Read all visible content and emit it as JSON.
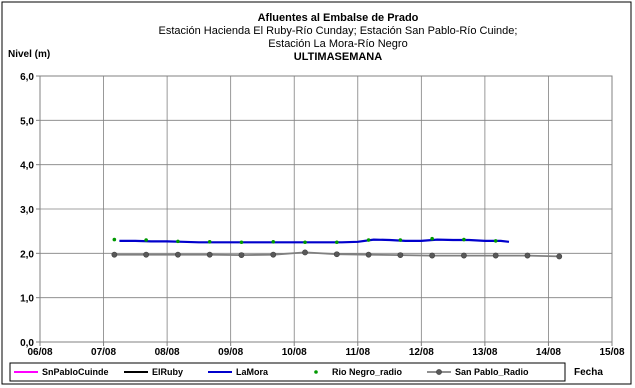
{
  "chart_data": {
    "type": "line",
    "title_lines": [
      "Afluentes al Embalse de Prado",
      "Estación Hacienda El Ruby-Río Cunday; Estación San Pablo-Río Cuinde;",
      "Estación La Mora-Río Negro",
      "ULTIMASEMANA"
    ],
    "ylabel": "Nivel (m)",
    "xlabel": "Fecha",
    "ylim": [
      0,
      6
    ],
    "y_ticks": [
      "0,0",
      "1,0",
      "2,0",
      "3,0",
      "4,0",
      "5,0",
      "6,0"
    ],
    "x_ticks": [
      "06/08",
      "07/08",
      "08/08",
      "09/08",
      "10/08",
      "11/08",
      "12/08",
      "13/08",
      "14/08",
      "15/08"
    ],
    "xlim": [
      0,
      9
    ],
    "grid": true,
    "legend_position": "bottom",
    "series": [
      {
        "name": "SnPabloCuinde",
        "color": "#ff00ff",
        "style": "line",
        "x": [],
        "y": []
      },
      {
        "name": "ElRuby",
        "color": "#000000",
        "style": "line",
        "x": [],
        "y": []
      },
      {
        "name": "LaMora",
        "color": "#0000cc",
        "style": "line",
        "x": [
          1.25,
          1.5,
          1.75,
          2.0,
          2.25,
          2.5,
          2.75,
          3.0,
          3.25,
          3.5,
          3.75,
          4.0,
          4.25,
          4.5,
          4.75,
          5.0,
          5.25,
          5.5,
          5.75,
          6.0,
          6.25,
          6.5,
          6.75,
          7.0,
          7.25,
          7.38
        ],
        "y": [
          2.28,
          2.28,
          2.27,
          2.27,
          2.26,
          2.25,
          2.25,
          2.25,
          2.25,
          2.25,
          2.25,
          2.25,
          2.25,
          2.25,
          2.25,
          2.26,
          2.31,
          2.3,
          2.28,
          2.28,
          2.31,
          2.3,
          2.3,
          2.28,
          2.28,
          2.26
        ]
      },
      {
        "name": "Rio Negro_radio",
        "color": "#009900",
        "style": "markers",
        "x": [
          1.17,
          1.67,
          2.17,
          2.67,
          3.17,
          3.67,
          4.17,
          4.67,
          5.17,
          5.67,
          6.17,
          6.67,
          7.17
        ],
        "y": [
          2.31,
          2.3,
          2.27,
          2.26,
          2.25,
          2.26,
          2.25,
          2.25,
          2.3,
          2.3,
          2.33,
          2.31,
          2.28
        ]
      },
      {
        "name": "San Pablo_Radio",
        "color": "#808080",
        "marker_color": "#595959",
        "style": "line-markers",
        "x": [
          1.17,
          1.67,
          2.17,
          2.67,
          3.17,
          3.67,
          4.17,
          4.67,
          5.17,
          5.67,
          6.17,
          6.67,
          7.17,
          7.67,
          8.17
        ],
        "y": [
          1.97,
          1.97,
          1.97,
          1.97,
          1.96,
          1.97,
          2.02,
          1.98,
          1.97,
          1.96,
          1.95,
          1.95,
          1.95,
          1.95,
          1.93
        ]
      }
    ]
  }
}
